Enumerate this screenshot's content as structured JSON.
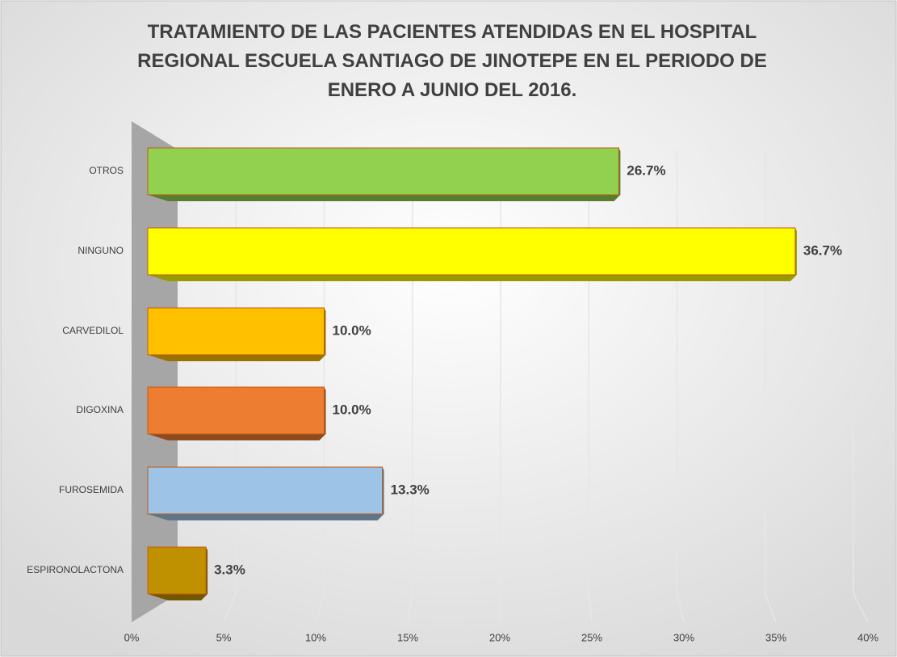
{
  "chart_data": {
    "type": "bar3d_horizontal",
    "title": "TRATAMIENTO DE LAS PACIENTES ATENDIDAS EN EL HOSPITAL REGIONAL ESCUELA SANTIAGO DE JINOTEPE EN EL PERIODO DE ENERO A JUNIO DEL 2016.",
    "categories": [
      "OTROS",
      "NINGUNO",
      "CARVEDILOL",
      "DIGOXINA",
      "FUROSEMIDA",
      "ESPIRONOLACTONA"
    ],
    "values": [
      26.7,
      36.7,
      10.0,
      10.0,
      13.3,
      3.3
    ],
    "value_labels": [
      "26.7%",
      "36.7%",
      "10.0%",
      "10.0%",
      "13.3%",
      "3.3%"
    ],
    "colors": [
      "#92d050",
      "#ffff00",
      "#ffc000",
      "#ed7d31",
      "#9dc3e6",
      "#bf9000"
    ],
    "xlim": [
      0,
      40
    ],
    "xticks": [
      {
        "value": 0,
        "label": "0%"
      },
      {
        "value": 5,
        "label": "5%"
      },
      {
        "value": 10,
        "label": "10%"
      },
      {
        "value": 15,
        "label": "15%"
      },
      {
        "value": 20,
        "label": "20%"
      },
      {
        "value": 25,
        "label": "25%"
      },
      {
        "value": 30,
        "label": "30%"
      },
      {
        "value": 35,
        "label": "35%"
      },
      {
        "value": 40,
        "label": "40%"
      }
    ],
    "grid": true
  }
}
